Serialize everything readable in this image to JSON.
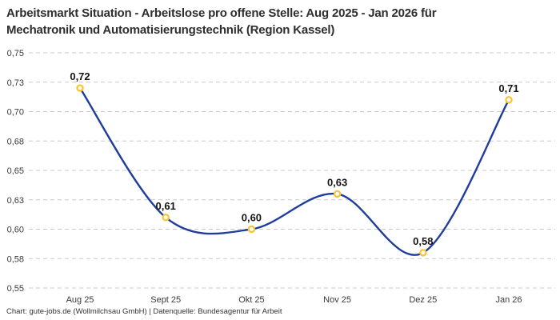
{
  "title": {
    "line1": "Arbeitsmarkt Situation - Arbeitslose pro offene Stelle: Aug 2025 - Jan 2026 für",
    "line2": "Mechatronik und Automatisierungstechnik (Region Kassel)"
  },
  "footer": {
    "credit": "Chart: gute-jobs.de (Wollmilchsau GmbH) | Datenquelle: Bundesagentur für Arbeit"
  },
  "chart_data": {
    "type": "line",
    "title": "Arbeitsmarkt Situation - Arbeitslose pro offene Stelle: Aug 2025 - Jan 2026 für Mechatronik und Automatisierungstechnik (Region Kassel)",
    "categories": [
      "Aug 25",
      "Sept 25",
      "Okt 25",
      "Nov 25",
      "Dez 25",
      "Jan 26"
    ],
    "values": [
      0.72,
      0.61,
      0.6,
      0.63,
      0.58,
      0.71
    ],
    "point_labels": [
      "0,72",
      "0,61",
      "0,60",
      "0,63",
      "0,58",
      "0,71"
    ],
    "y_ticks": [
      {
        "value": 0.75,
        "label": "0,75"
      },
      {
        "value": 0.725,
        "label": "0,73"
      },
      {
        "value": 0.7,
        "label": "0,70"
      },
      {
        "value": 0.675,
        "label": "0,68"
      },
      {
        "value": 0.65,
        "label": "0,65"
      },
      {
        "value": 0.625,
        "label": "0,63"
      },
      {
        "value": 0.6,
        "label": "0,60"
      },
      {
        "value": 0.575,
        "label": "0,58"
      },
      {
        "value": 0.55,
        "label": "0,55"
      }
    ],
    "ylim": [
      0.55,
      0.75
    ],
    "xlabel": "",
    "ylabel": "",
    "grid": "horizontal-dashed",
    "legend": "none",
    "colors": {
      "line": "#1f3d9c",
      "marker_stroke": "#fdc32a",
      "marker_fill": "#ffffff",
      "grid": "#c9c9c9",
      "tick_text": "#3a3a3a",
      "label_text": "#141414"
    }
  }
}
